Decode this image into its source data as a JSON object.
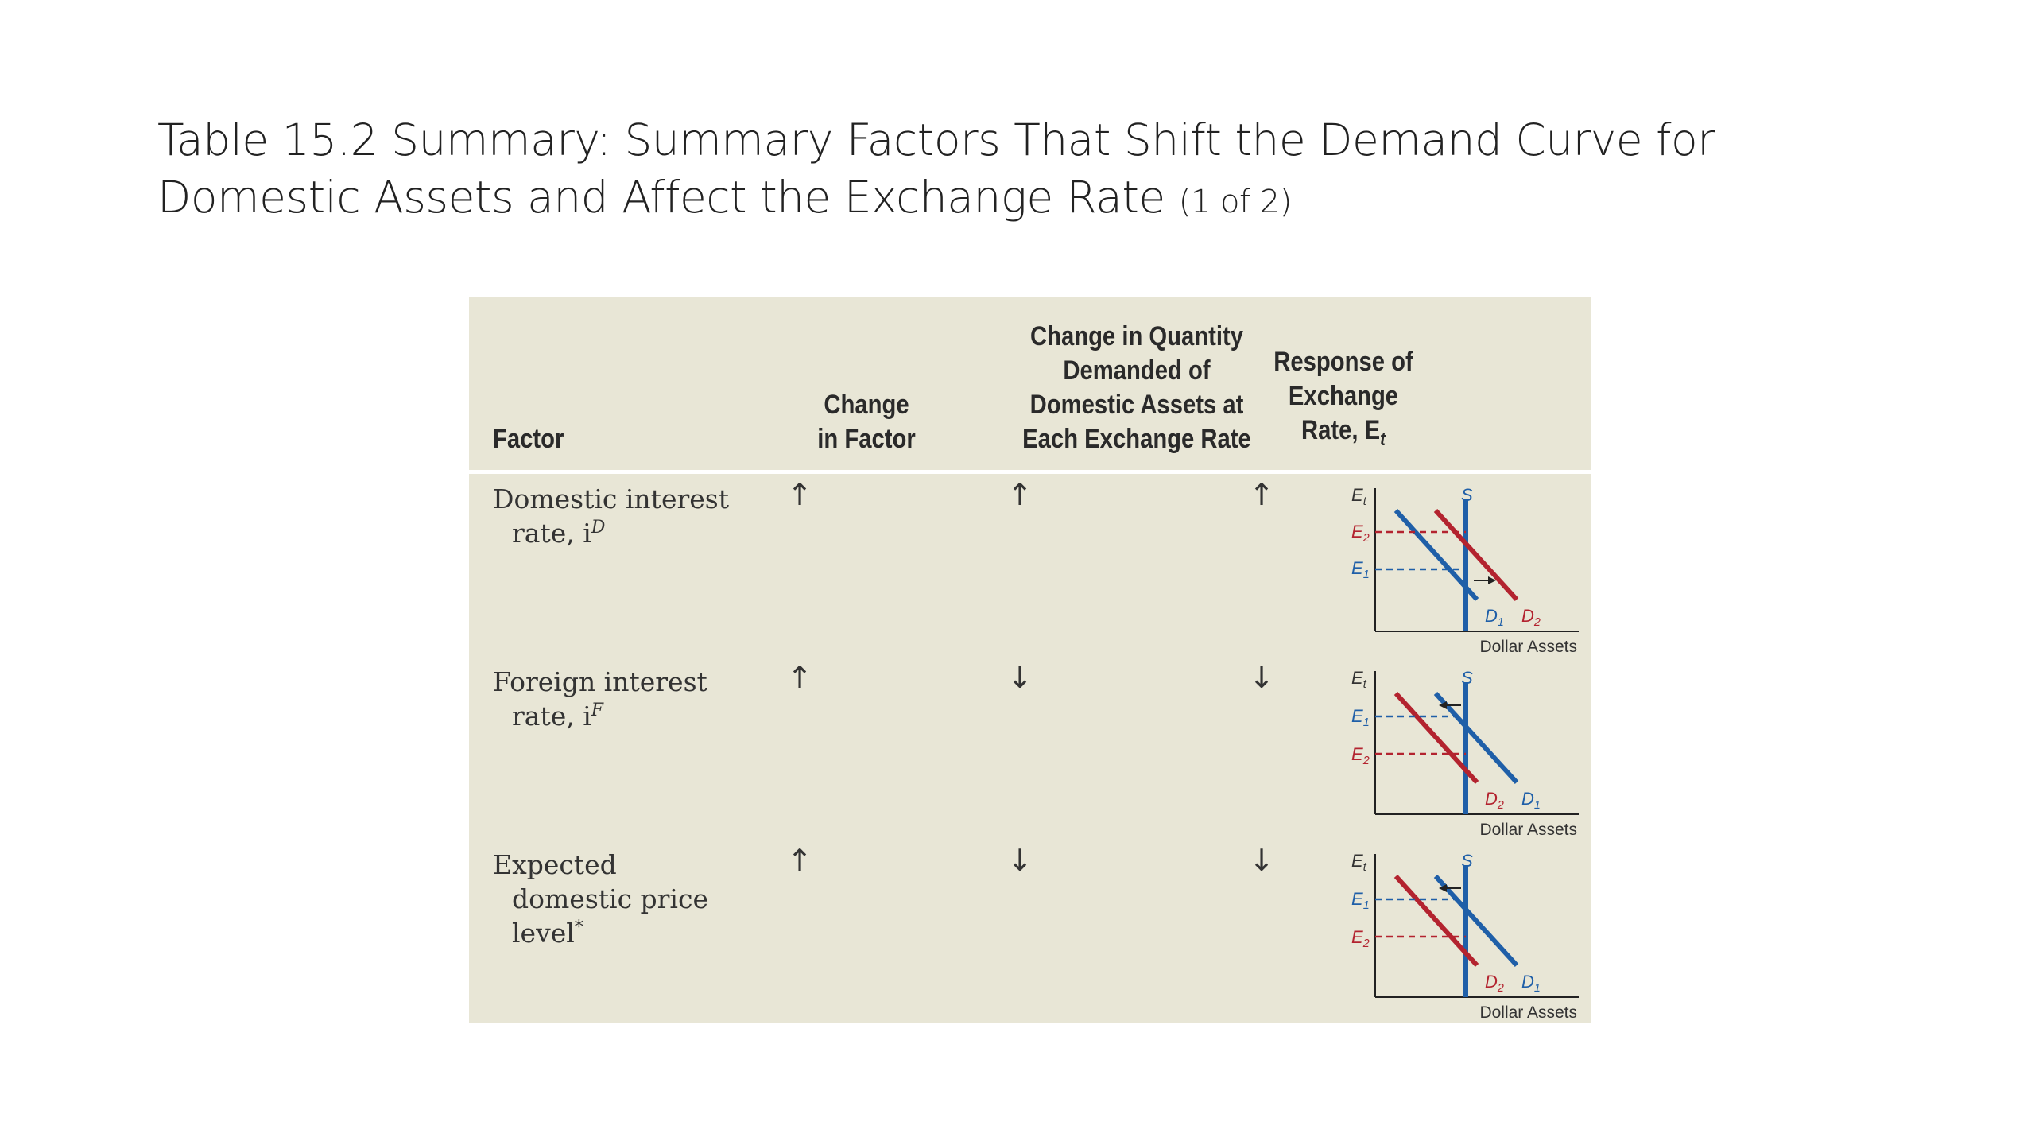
{
  "slide": {
    "title_main": "Table 15.2 Summary: Summary Factors That Shift the Demand Curve for Domestic Assets and Affect the Exchange Rate",
    "title_sub": "(1 of 2)"
  },
  "table": {
    "headers": {
      "factor": "Factor",
      "change_in_factor_1": "Change",
      "change_in_factor_2": "in Factor",
      "qty_1": "Change in Quantity",
      "qty_2": "Demanded of",
      "qty_3": "Domestic Assets at",
      "qty_4": "Each Exchange Rate",
      "resp_1": "Response of",
      "resp_2": "Exchange",
      "resp_3": "Rate, E",
      "resp_sub": "t"
    },
    "rows": [
      {
        "factor_line1": "Domestic interest",
        "factor_line2": "rate, i",
        "factor_sup": "D",
        "change": "↑",
        "qty": "↑",
        "response": "↑",
        "chart": {
          "y_axis": "E",
          "y_sub": "t",
          "upper": "E",
          "upper_sub": "2",
          "lower": "E",
          "lower_sub": "1",
          "supply": "S",
          "curve_a": "D",
          "curve_a_sub": "1",
          "curve_b": "D",
          "curve_b_sub": "2",
          "x_axis": "Dollar Assets",
          "shift": "right",
          "colors": {
            "d1": "#1f5fa8",
            "d2": "#b3232f",
            "s": "#1f5fa8"
          }
        }
      },
      {
        "factor_line1": "Foreign interest",
        "factor_line2": "rate, i",
        "factor_sup": "F",
        "change": "↑",
        "qty": "↓",
        "response": "↓",
        "chart": {
          "y_axis": "E",
          "y_sub": "t",
          "upper": "E",
          "upper_sub": "1",
          "lower": "E",
          "lower_sub": "2",
          "supply": "S",
          "curve_a": "D",
          "curve_a_sub": "2",
          "curve_b": "D",
          "curve_b_sub": "1",
          "x_axis": "Dollar Assets",
          "shift": "left",
          "colors": {
            "d1": "#1f5fa8",
            "d2": "#b3232f",
            "s": "#1f5fa8"
          }
        }
      },
      {
        "factor_line1": "Expected",
        "factor_line2": "domestic price",
        "factor_line3": "level",
        "factor_sup": "*",
        "change": "↑",
        "qty": "↓",
        "response": "↓",
        "chart": {
          "y_axis": "E",
          "y_sub": "t",
          "upper": "E",
          "upper_sub": "1",
          "lower": "E",
          "lower_sub": "2",
          "supply": "S",
          "curve_a": "D",
          "curve_a_sub": "2",
          "curve_b": "D",
          "curve_b_sub": "1",
          "x_axis": "Dollar Assets",
          "shift": "left",
          "colors": {
            "d1": "#1f5fa8",
            "d2": "#b3232f",
            "s": "#1f5fa8"
          }
        }
      }
    ]
  }
}
